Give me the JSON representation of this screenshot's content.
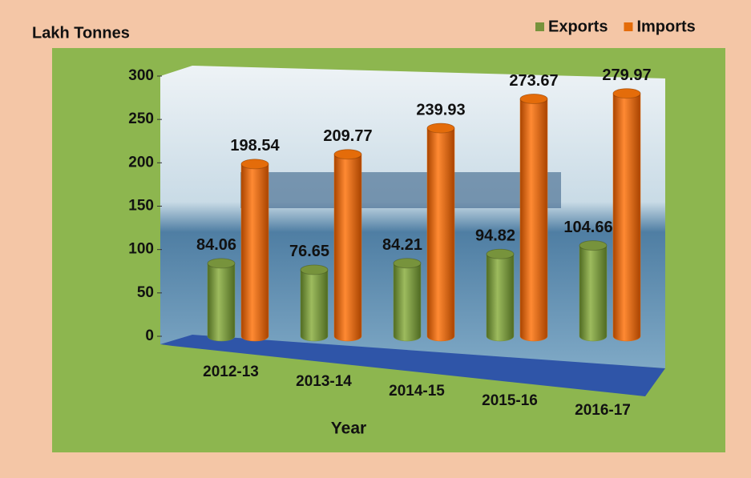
{
  "chart_data": {
    "type": "bar",
    "ylabel": "Lakh Tonnes",
    "xlabel": "Year",
    "categories": [
      "2012-13",
      "2013-14",
      "2014-15",
      "2015-16",
      "2016-17"
    ],
    "series": [
      {
        "name": "Exports",
        "color": "#77933c",
        "values": [
          84.06,
          76.65,
          84.21,
          94.82,
          104.66
        ]
      },
      {
        "name": "Imports",
        "color": "#e46c0a",
        "values": [
          198.54,
          209.77,
          239.93,
          273.67,
          279.97
        ]
      }
    ],
    "ylim": [
      0,
      300
    ],
    "yticks": [
      0,
      50,
      100,
      150,
      200,
      250,
      300
    ],
    "grid": false
  }
}
